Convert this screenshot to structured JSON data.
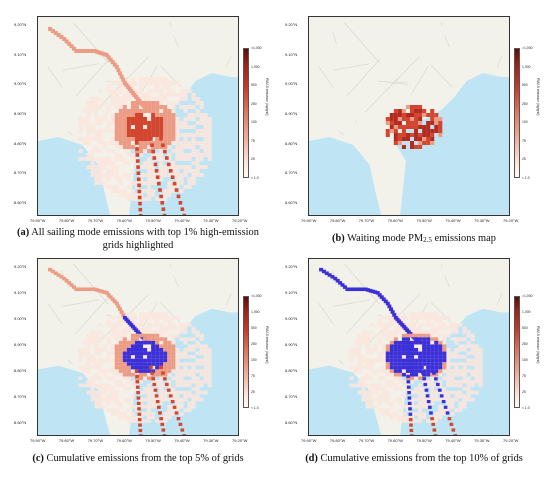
{
  "colors": {
    "sea": "#bfe5f5",
    "land": "#f2f1ea",
    "road": "#d7d5cc",
    "low": "#fbe7de",
    "mid": "#ec9c84",
    "high": "#d2452f",
    "top": "#3b2fd8"
  },
  "axes": {
    "lon_labels": [
      "79.90°W",
      "79.80°W",
      "79.70°W",
      "79.60°W",
      "79.50°W",
      "79.40°W",
      "79.30°W",
      "79.20°W"
    ],
    "lat_labels": [
      "9.20°N",
      "9.10°N",
      "9.00°N",
      "8.90°N",
      "8.80°N",
      "8.70°N",
      "8.60°N"
    ]
  },
  "colorbar": {
    "title": "PM2.5 emission (kg/grid)",
    "ticks": [
      ">1,000",
      "1,000",
      "500",
      "250",
      "100",
      "75",
      "25",
      "< 1.0"
    ]
  },
  "panels": [
    {
      "letter": "(a)",
      "caption_line1": "All sailing mode emissions with top 1% high-emission",
      "caption_line2": "grids highlighted",
      "mode": "all",
      "highlight": 0.01
    },
    {
      "letter": "(b)",
      "caption_pre": "Waiting mode PM",
      "caption_sub": "2.5",
      "caption_post": " emissions map",
      "mode": "waiting",
      "highlight": 0
    },
    {
      "letter": "(c)",
      "caption_line1": "Cumulative emissions from the top 5% of grids",
      "mode": "all",
      "highlight": 0.05
    },
    {
      "letter": "(d)",
      "caption_line1": "Cumulative emissions from the top 10% of grids",
      "mode": "all",
      "highlight": 0.1
    }
  ]
}
